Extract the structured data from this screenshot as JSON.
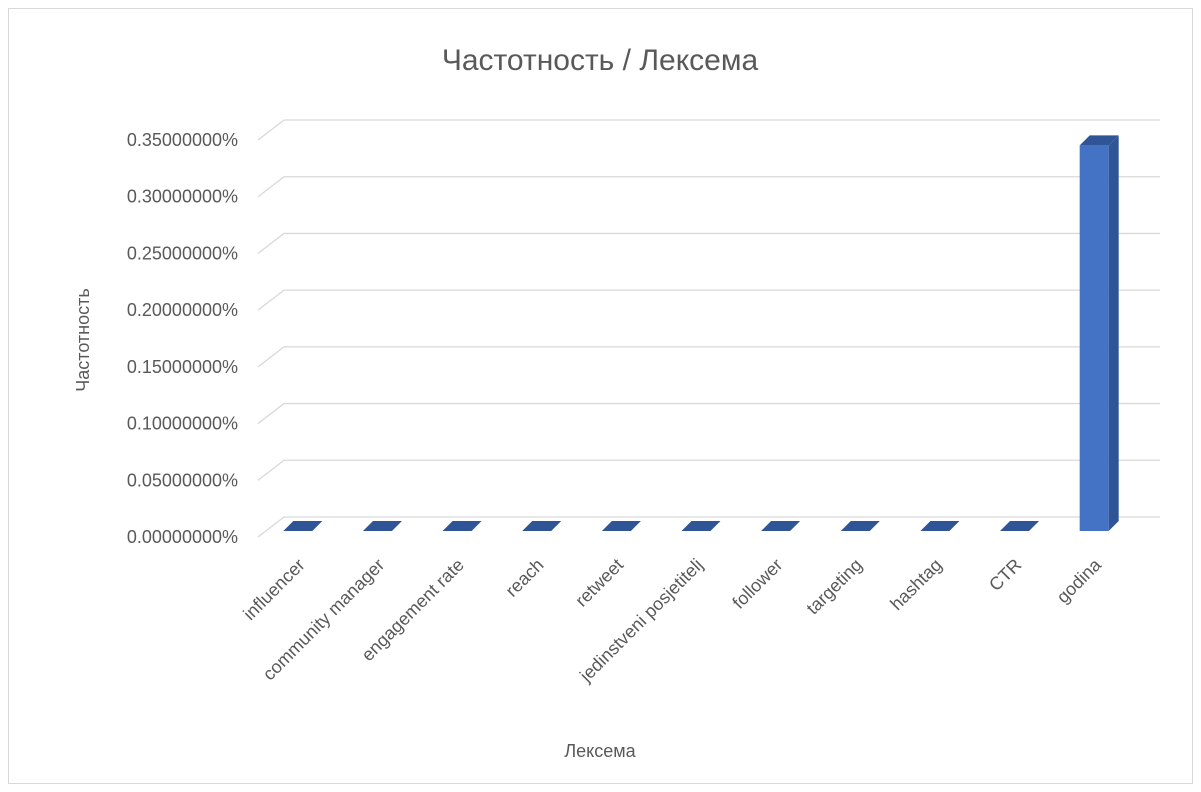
{
  "chart_data": {
    "type": "bar",
    "title": "Частотность / Лексема",
    "xlabel": "Лексема",
    "ylabel": "Частотность",
    "categories": [
      "influencer",
      "community manager",
      "engagement rate",
      "reach",
      "retweet",
      "jedinstveni posjetitelj",
      "follower",
      "targeting",
      "hashtag",
      "CTR",
      "godina"
    ],
    "series": [
      {
        "values": [
          0,
          0,
          0,
          0,
          0,
          0,
          0,
          0,
          0,
          0,
          0.0034
        ]
      }
    ],
    "ylim": [
      0,
      0.0035
    ],
    "yticks": [
      "0.00000000%",
      "0.05000000%",
      "0.10000000%",
      "0.15000000%",
      "0.20000000%",
      "0.25000000%",
      "0.30000000%",
      "0.35000000%"
    ],
    "grid": true,
    "legend": "none",
    "bar_color": "#4472c4",
    "bar_side_color": "#2f5597",
    "bar_top_color": "#2f5597"
  }
}
